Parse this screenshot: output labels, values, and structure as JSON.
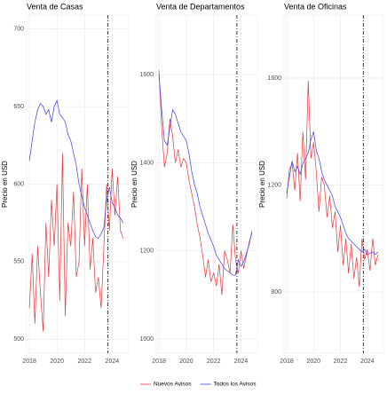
{
  "chart_data": [
    {
      "type": "line",
      "title": "Venta de Casas",
      "y_label": "Precio en USD",
      "x": [
        2018,
        2018.2,
        2018.4,
        2018.6,
        2018.8,
        2019,
        2019.2,
        2019.4,
        2019.6,
        2019.8,
        2020,
        2020.2,
        2020.4,
        2020.6,
        2020.8,
        2021,
        2021.2,
        2021.4,
        2021.6,
        2021.8,
        2022,
        2022.2,
        2022.4,
        2022.6,
        2022.8,
        2023,
        2023.2,
        2023.4,
        2023.6,
        2023.8,
        2024,
        2024.2,
        2024.4,
        2024.6,
        2024.8
      ],
      "series": [
        {
          "name": "Nuevos Avisos",
          "color": "#e8353b",
          "values": [
            520,
            555,
            510,
            560,
            530,
            505,
            575,
            540,
            590,
            560,
            600,
            525,
            620,
            515,
            575,
            560,
            595,
            540,
            550,
            610,
            560,
            600,
            545,
            565,
            530,
            540,
            520,
            560,
            600,
            570,
            610,
            580,
            605,
            570,
            565
          ]
        },
        {
          "name": "Todos los Avisos",
          "color": "#3a3af0",
          "values": [
            615,
            628,
            640,
            648,
            652,
            650,
            645,
            648,
            640,
            650,
            654,
            645,
            643,
            640,
            632,
            628,
            620,
            612,
            600,
            592,
            585,
            580,
            575,
            570,
            566,
            565,
            568,
            572,
            590,
            598,
            588,
            585,
            580,
            578,
            575
          ]
        }
      ],
      "xlim": [
        2017.8,
        2025.2
      ],
      "xticks": [
        2018,
        2020,
        2022,
        2024
      ],
      "ylim": [
        491,
        709
      ],
      "yticks": [
        500,
        550,
        600,
        650,
        700
      ],
      "grid": true,
      "vline": 2023.7,
      "legend": "bottom"
    },
    {
      "type": "line",
      "title": "Venta de Departamentos",
      "y_label": "Precio en USD",
      "x": [
        2018,
        2018.2,
        2018.4,
        2018.6,
        2018.8,
        2019,
        2019.2,
        2019.4,
        2019.6,
        2019.8,
        2020,
        2020.2,
        2020.4,
        2020.6,
        2020.8,
        2021,
        2021.2,
        2021.4,
        2021.6,
        2021.8,
        2022,
        2022.2,
        2022.4,
        2022.6,
        2022.8,
        2023,
        2023.2,
        2023.4,
        2023.6,
        2023.8,
        2024,
        2024.2,
        2024.4,
        2024.6,
        2024.8
      ],
      "series": [
        {
          "color": "#e8353b",
          "values": [
            1610,
            1480,
            1390,
            1420,
            1500,
            1460,
            1400,
            1430,
            1390,
            1410,
            1400,
            1360,
            1330,
            1300,
            1260,
            1230,
            1190,
            1140,
            1180,
            1130,
            1150,
            1120,
            1170,
            1100,
            1200,
            1180,
            1150,
            1260,
            1180,
            1150,
            1200,
            1160,
            1190,
            1220,
            1240
          ]
        },
        {
          "color": "#3a3af0",
          "values": [
            1600,
            1520,
            1450,
            1440,
            1480,
            1520,
            1510,
            1490,
            1470,
            1460,
            1450,
            1420,
            1380,
            1350,
            1330,
            1300,
            1280,
            1260,
            1240,
            1225,
            1210,
            1190,
            1180,
            1170,
            1160,
            1155,
            1150,
            1145,
            1145,
            1180,
            1165,
            1175,
            1195,
            1215,
            1245
          ]
        }
      ],
      "xlim": [
        2017.8,
        2025.2
      ],
      "xticks": [
        2018,
        2020,
        2022,
        2024
      ],
      "ylim": [
        968,
        1735
      ],
      "yticks": [
        1000,
        1200,
        1400,
        1600
      ],
      "grid": true,
      "vline": 2023.7
    },
    {
      "type": "line",
      "title": "Venta de Oficinas",
      "y_label": "Precio en USD",
      "x": [
        2018,
        2018.2,
        2018.4,
        2018.6,
        2018.8,
        2019,
        2019.2,
        2019.4,
        2019.6,
        2019.8,
        2020,
        2020.2,
        2020.4,
        2020.6,
        2020.8,
        2021,
        2021.2,
        2021.4,
        2021.6,
        2021.8,
        2022,
        2022.2,
        2022.4,
        2022.6,
        2022.8,
        2023,
        2023.2,
        2023.4,
        2023.6,
        2023.8,
        2024,
        2024.2,
        2024.4,
        2024.6,
        2024.8
      ],
      "series": [
        {
          "color": "#e8353b",
          "values": [
            1150,
            1260,
            1280,
            1180,
            1320,
            1140,
            1400,
            1220,
            1590,
            1300,
            1360,
            1250,
            1100,
            1230,
            1200,
            1080,
            1160,
            1040,
            1100,
            950,
            1050,
            900,
            1000,
            870,
            980,
            850,
            930,
            820,
            1000,
            920,
            960,
            880,
            1000,
            900,
            940
          ]
        },
        {
          "color": "#3a3af0",
          "values": [
            1170,
            1230,
            1290,
            1250,
            1270,
            1240,
            1280,
            1300,
            1320,
            1370,
            1400,
            1330,
            1300,
            1250,
            1220,
            1200,
            1180,
            1160,
            1120,
            1100,
            1080,
            1050,
            1020,
            1000,
            990,
            980,
            970,
            960,
            950,
            960,
            940,
            945,
            950,
            940,
            950
          ]
        }
      ],
      "xlim": [
        2017.8,
        2025.2
      ],
      "xticks": [
        2018,
        2020,
        2022,
        2024
      ],
      "ylim": [
        571,
        1836
      ],
      "yticks": [
        800,
        1200,
        1600
      ],
      "grid": true,
      "vline": 2023.7
    }
  ]
}
